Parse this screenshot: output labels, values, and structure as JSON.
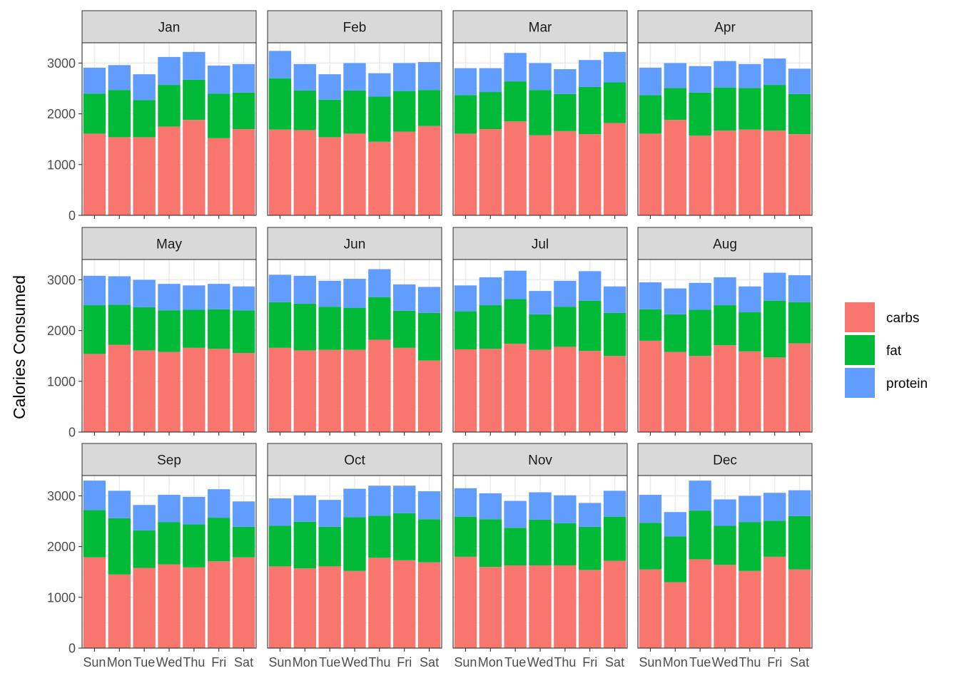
{
  "chart_data": {
    "type": "bar",
    "stacked": true,
    "faceted": true,
    "ylabel": "Calories Consumed",
    "xlabel": "",
    "ylim": [
      0,
      3400
    ],
    "yticks": [
      0,
      1000,
      2000,
      3000
    ],
    "grid": true,
    "legend_position": "right",
    "categories": [
      "Sun",
      "Mon",
      "Tue",
      "Wed",
      "Thu",
      "Fri",
      "Sat"
    ],
    "series_names": [
      "carbs",
      "fat",
      "protein"
    ],
    "colors": {
      "carbs": "#F8766D",
      "fat": "#00BA38",
      "protein": "#619CFF"
    },
    "facets": [
      {
        "label": "Jan",
        "series": [
          {
            "name": "carbs",
            "values": [
              1610,
              1540,
              1540,
              1750,
              1880,
              1520,
              1700
            ]
          },
          {
            "name": "fat",
            "values": [
              790,
              930,
              730,
              820,
              790,
              880,
              720
            ]
          },
          {
            "name": "protein",
            "values": [
              510,
              490,
              510,
              550,
              550,
              550,
              560
            ]
          }
        ]
      },
      {
        "label": "Feb",
        "series": [
          {
            "name": "carbs",
            "values": [
              1690,
              1680,
              1540,
              1610,
              1450,
              1650,
              1760
            ]
          },
          {
            "name": "fat",
            "values": [
              1010,
              780,
              740,
              850,
              890,
              800,
              710
            ]
          },
          {
            "name": "protein",
            "values": [
              540,
              520,
              500,
              540,
              460,
              550,
              550
            ]
          }
        ]
      },
      {
        "label": "Mar",
        "series": [
          {
            "name": "carbs",
            "values": [
              1610,
              1700,
              1850,
              1580,
              1660,
              1600,
              1820
            ]
          },
          {
            "name": "fat",
            "values": [
              760,
              730,
              790,
              890,
              730,
              930,
              800
            ]
          },
          {
            "name": "protein",
            "values": [
              530,
              470,
              560,
              530,
              490,
              530,
              600
            ]
          }
        ]
      },
      {
        "label": "Apr",
        "series": [
          {
            "name": "carbs",
            "values": [
              1610,
              1880,
              1570,
              1670,
              1690,
              1670,
              1600
            ]
          },
          {
            "name": "fat",
            "values": [
              760,
              630,
              850,
              850,
              820,
              900,
              790
            ]
          },
          {
            "name": "protein",
            "values": [
              540,
              490,
              520,
              520,
              470,
              520,
              500
            ]
          }
        ]
      },
      {
        "label": "May",
        "series": [
          {
            "name": "carbs",
            "values": [
              1540,
              1720,
              1610,
              1580,
              1660,
              1640,
              1560
            ]
          },
          {
            "name": "fat",
            "values": [
              960,
              790,
              850,
              820,
              750,
              780,
              840
            ]
          },
          {
            "name": "protein",
            "values": [
              580,
              560,
              540,
              520,
              480,
              500,
              470
            ]
          }
        ]
      },
      {
        "label": "Jun",
        "series": [
          {
            "name": "carbs",
            "values": [
              1660,
              1610,
              1620,
              1620,
              1820,
              1660,
              1410
            ]
          },
          {
            "name": "fat",
            "values": [
              900,
              920,
              850,
              830,
              840,
              730,
              940
            ]
          },
          {
            "name": "protein",
            "values": [
              540,
              550,
              510,
              570,
              550,
              520,
              510
            ]
          }
        ]
      },
      {
        "label": "Jul",
        "series": [
          {
            "name": "carbs",
            "values": [
              1630,
              1640,
              1740,
              1620,
              1680,
              1600,
              1500
            ]
          },
          {
            "name": "fat",
            "values": [
              750,
              860,
              880,
              700,
              790,
              990,
              850
            ]
          },
          {
            "name": "protein",
            "values": [
              510,
              550,
              560,
              460,
              510,
              580,
              520
            ]
          }
        ]
      },
      {
        "label": "Aug",
        "series": [
          {
            "name": "carbs",
            "values": [
              1800,
              1580,
              1500,
              1710,
              1590,
              1470,
              1750
            ]
          },
          {
            "name": "fat",
            "values": [
              620,
              740,
              910,
              790,
              770,
              1120,
              810
            ]
          },
          {
            "name": "protein",
            "values": [
              530,
              510,
              530,
              550,
              510,
              550,
              530
            ]
          }
        ]
      },
      {
        "label": "Sep",
        "series": [
          {
            "name": "carbs",
            "values": [
              1790,
              1450,
              1580,
              1650,
              1590,
              1710,
              1790
            ]
          },
          {
            "name": "fat",
            "values": [
              930,
              1110,
              740,
              830,
              850,
              860,
              600
            ]
          },
          {
            "name": "protein",
            "values": [
              580,
              540,
              500,
              540,
              540,
              560,
              500
            ]
          }
        ]
      },
      {
        "label": "Oct",
        "series": [
          {
            "name": "carbs",
            "values": [
              1610,
              1570,
              1610,
              1520,
              1780,
              1730,
              1690
            ]
          },
          {
            "name": "fat",
            "values": [
              800,
              920,
              780,
              1060,
              830,
              930,
              850
            ]
          },
          {
            "name": "protein",
            "values": [
              540,
              520,
              530,
              560,
              590,
              540,
              550
            ]
          }
        ]
      },
      {
        "label": "Nov",
        "series": [
          {
            "name": "carbs",
            "values": [
              1800,
              1600,
              1630,
              1630,
              1630,
              1540,
              1720
            ]
          },
          {
            "name": "fat",
            "values": [
              790,
              940,
              740,
              900,
              830,
              850,
              870
            ]
          },
          {
            "name": "protein",
            "values": [
              560,
              510,
              530,
              540,
              550,
              470,
              510
            ]
          }
        ]
      },
      {
        "label": "Dec",
        "series": [
          {
            "name": "carbs",
            "values": [
              1550,
              1300,
              1750,
              1640,
              1520,
              1800,
              1550
            ]
          },
          {
            "name": "fat",
            "values": [
              920,
              900,
              960,
              770,
              960,
              710,
              1050
            ]
          },
          {
            "name": "protein",
            "values": [
              550,
              480,
              590,
              520,
              520,
              550,
              510
            ]
          }
        ]
      }
    ]
  }
}
